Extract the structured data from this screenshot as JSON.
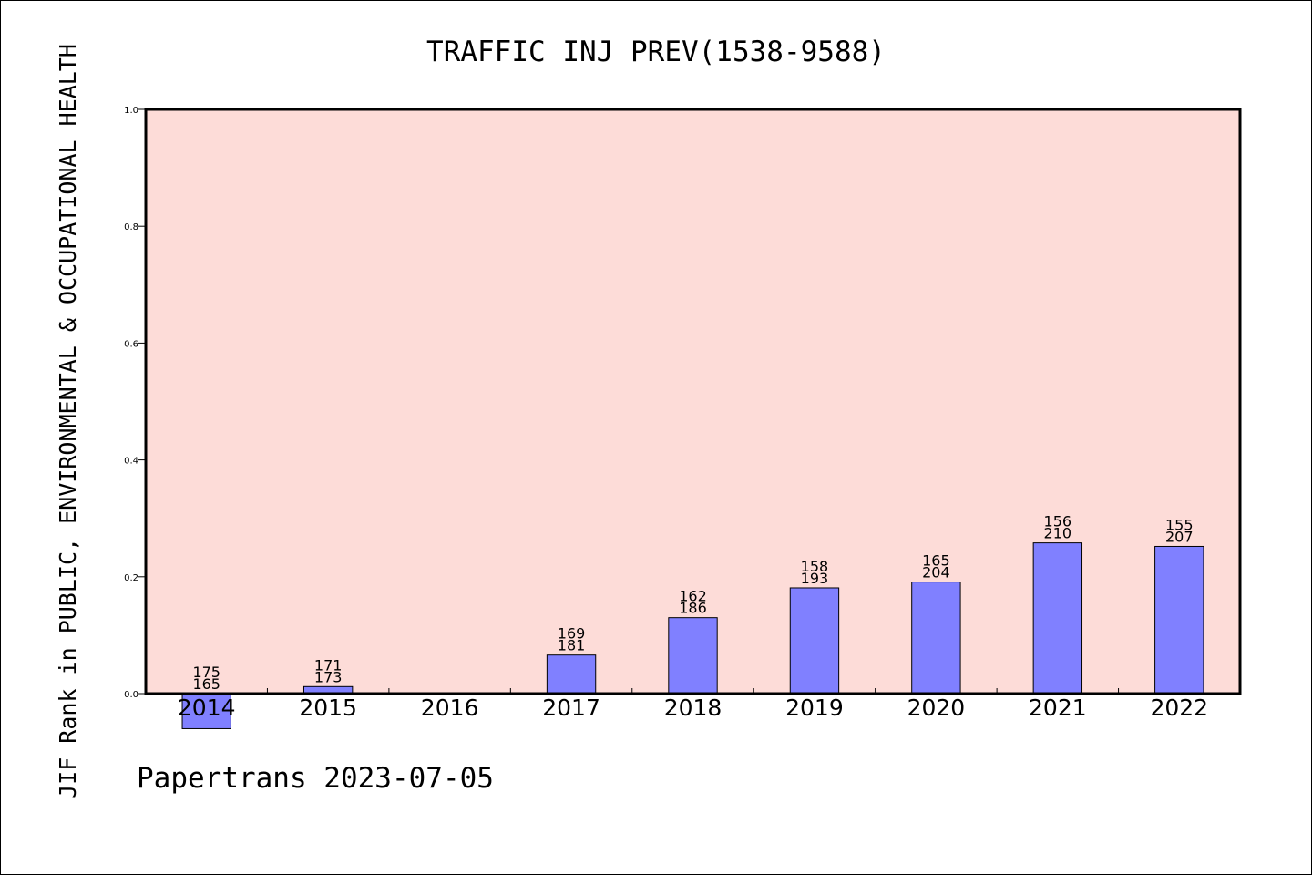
{
  "chart_data": {
    "type": "bar",
    "title": "TRAFFIC INJ PREV(1538-9588)",
    "ylabel": "JIF Rank in PUBLIC, ENVIRONMENTAL & OCCUPATIONAL HEALTH",
    "xlabel": "",
    "footer": "Papertrans 2023-07-05",
    "categories": [
      "2014",
      "2015",
      "2016",
      "2017",
      "2018",
      "2019",
      "2020",
      "2021",
      "2022"
    ],
    "values": [
      -0.06,
      0.012,
      null,
      0.066,
      0.13,
      0.181,
      0.191,
      0.258,
      0.252
    ],
    "labels": [
      [
        "175",
        "165"
      ],
      [
        "171",
        "173"
      ],
      null,
      [
        "169",
        "181"
      ],
      [
        "162",
        "186"
      ],
      [
        "158",
        "193"
      ],
      [
        "165",
        "204"
      ],
      [
        "156",
        "210"
      ],
      [
        "155",
        "207"
      ]
    ],
    "ylim": [
      0,
      1.0
    ],
    "yticks": [
      "0.0",
      "0.2",
      "0.4",
      "0.6",
      "0.8",
      "1.0"
    ],
    "grid": false,
    "colors": {
      "plot_bg": "#fddcd8",
      "bar": "#8080ff",
      "bar_edge": "#000000"
    }
  }
}
